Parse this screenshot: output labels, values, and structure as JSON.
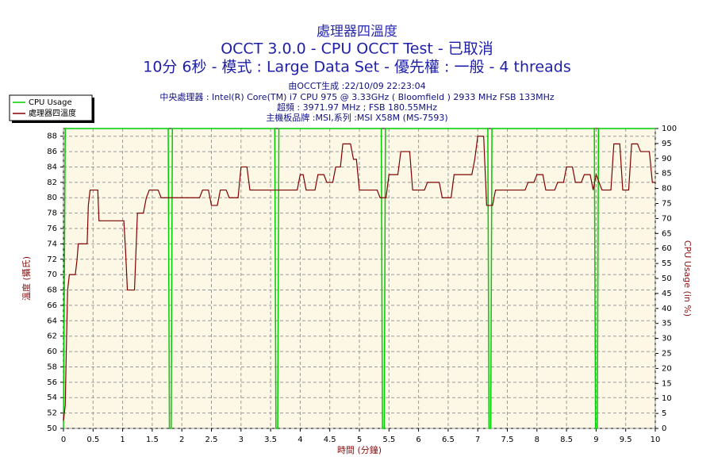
{
  "chart_data": {
    "type": "line",
    "title": "處理器四溫度",
    "subtitles": [
      "OCCT 3.0.0 - CPU OCCT Test - 已取消",
      "10分 6秒 - 模式 : Large Data Set - 優先權 : 一般 - 4 threads"
    ],
    "info": [
      "由OCCT生成 :22/10/09 22:23:04",
      "中央處理器 : Intel(R) Core(TM) i7 CPU 975 @ 3.33GHz ( Bloomfield ) 2933 MHz FSB 133MHz",
      "超頻 : 3971.97 MHz ; FSB 180.55MHz",
      "主機板品牌 :MSI,系列 :MSI X58M (MS-7593)"
    ],
    "x_label": "時間 (分鐘)",
    "y_label": "溫度 (攝氏)",
    "y2_label": "CPU Usage (in %)",
    "xlim": [
      0,
      10
    ],
    "xticks": [
      0,
      0.5,
      1,
      1.5,
      2,
      2.5,
      3,
      3.5,
      4,
      4.5,
      5,
      5.5,
      6,
      6.5,
      7,
      7.5,
      8,
      8.5,
      9,
      9.5,
      10
    ],
    "ylim": [
      50,
      89
    ],
    "yticks": [
      50,
      52,
      54,
      56,
      58,
      60,
      62,
      64,
      66,
      68,
      70,
      72,
      74,
      76,
      78,
      80,
      82,
      84,
      86,
      88
    ],
    "y2lim": [
      0,
      100
    ],
    "y2ticks": [
      0,
      5,
      10,
      15,
      20,
      25,
      30,
      35,
      40,
      45,
      50,
      55,
      60,
      65,
      70,
      75,
      80,
      85,
      90,
      95,
      100
    ],
    "grid": true,
    "legend": "upper left",
    "series": [
      {
        "name": "CPU Usage",
        "color": "#00cc00",
        "axis": "y2",
        "x": [
          0,
          0.03,
          1.77,
          1.79,
          1.82,
          1.84,
          3.57,
          3.59,
          3.62,
          3.64,
          5.37,
          5.39,
          5.42,
          5.44,
          7.17,
          7.19,
          7.22,
          7.24,
          8.97,
          8.99,
          9.02,
          9.04,
          10
        ],
        "values": [
          0,
          100,
          100,
          0,
          0,
          100,
          100,
          0,
          0,
          100,
          100,
          0,
          0,
          100,
          100,
          0,
          0,
          100,
          100,
          0,
          0,
          100,
          100
        ]
      },
      {
        "name": "處理器四溫度",
        "color": "#800000",
        "axis": "y",
        "x": [
          0,
          0.03,
          0.05,
          0.07,
          0.1,
          0.2,
          0.23,
          0.25,
          0.4,
          0.42,
          0.45,
          0.58,
          0.6,
          1.02,
          1.05,
          1.08,
          1.2,
          1.25,
          1.35,
          1.4,
          1.45,
          1.6,
          1.65,
          2.3,
          2.35,
          2.45,
          2.5,
          2.6,
          2.65,
          2.75,
          2.8,
          2.95,
          3.0,
          3.1,
          3.15,
          3.95,
          4.0,
          4.05,
          4.1,
          4.25,
          4.3,
          4.4,
          4.45,
          4.55,
          4.6,
          4.68,
          4.72,
          4.85,
          4.9,
          4.95,
          5.0,
          5.3,
          5.35,
          5.45,
          5.5,
          5.65,
          5.7,
          5.85,
          5.9,
          6.1,
          6.15,
          6.35,
          6.4,
          6.55,
          6.6,
          6.9,
          6.95,
          7.0,
          7.1,
          7.15,
          7.25,
          7.3,
          7.8,
          7.85,
          7.95,
          8.0,
          8.1,
          8.15,
          8.3,
          8.35,
          8.45,
          8.5,
          8.6,
          8.65,
          8.75,
          8.8,
          8.9,
          8.95,
          9.0,
          9.1,
          9.25,
          9.3,
          9.4,
          9.45,
          9.55,
          9.6,
          9.7,
          9.75,
          9.9,
          9.95,
          10
        ],
        "values": [
          51,
          53,
          61,
          68,
          70,
          70,
          72,
          74,
          74,
          79,
          81,
          81,
          77,
          77,
          73,
          68,
          68,
          78,
          78,
          80,
          81,
          81,
          80,
          80,
          81,
          81,
          79,
          79,
          81,
          81,
          80,
          80,
          84,
          84,
          81,
          81,
          83,
          83,
          81,
          81,
          83,
          83,
          82,
          82,
          84,
          84,
          87,
          87,
          85,
          85,
          81,
          81,
          80,
          80,
          83,
          83,
          86,
          86,
          81,
          81,
          82,
          82,
          80,
          80,
          83,
          83,
          85,
          88,
          88,
          79,
          79,
          81,
          81,
          82,
          82,
          83,
          83,
          81,
          81,
          82,
          82,
          84,
          84,
          82,
          82,
          83,
          83,
          81,
          83,
          81,
          81,
          87,
          87,
          81,
          81,
          87,
          87,
          86,
          86,
          82,
          82
        ]
      }
    ]
  }
}
